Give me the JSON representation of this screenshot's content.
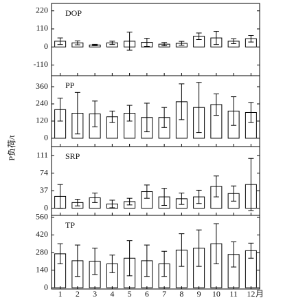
{
  "ylabel": "P负荷/t",
  "chart_data": [
    {
      "type": "bar",
      "title": "DOP",
      "values": [
        35,
        25,
        12,
        25,
        35,
        28,
        17,
        22,
        65,
        55,
        35,
        50
      ],
      "errors": [
        20,
        12,
        4,
        10,
        55,
        25,
        10,
        12,
        20,
        40,
        15,
        20
      ],
      "ylim": [
        -175,
        265
      ],
      "yticks": [
        -110,
        0,
        110,
        220
      ]
    },
    {
      "type": "bar",
      "title": "PP",
      "values": [
        200,
        175,
        170,
        150,
        175,
        145,
        145,
        255,
        215,
        235,
        190,
        180
      ],
      "errors": [
        80,
        145,
        90,
        40,
        55,
        100,
        70,
        125,
        175,
        75,
        100,
        70
      ],
      "ylim": [
        -58,
        437
      ],
      "yticks": [
        0,
        120,
        240,
        360
      ]
    },
    {
      "type": "bar",
      "title": "SRP",
      "values": [
        25,
        12,
        22,
        9,
        14,
        35,
        24,
        20,
        24,
        46,
        31,
        50
      ],
      "errors": [
        25,
        7,
        10,
        8,
        7,
        14,
        18,
        12,
        14,
        22,
        16,
        55
      ],
      "ylim": [
        -15,
        130
      ],
      "yticks": [
        0,
        37,
        74,
        111
      ]
    },
    {
      "type": "bar",
      "title": "TP",
      "values": [
        270,
        215,
        210,
        190,
        235,
        215,
        190,
        300,
        315,
        350,
        265,
        295
      ],
      "errors": [
        80,
        125,
        105,
        70,
        140,
        125,
        100,
        130,
        145,
        160,
        100,
        60
      ],
      "ylim": [
        -10,
        576
      ],
      "yticks": [
        0,
        140,
        280,
        420,
        560
      ],
      "categories": [
        "1",
        "2",
        "3",
        "4",
        "5",
        "6",
        "7",
        "8",
        "9",
        "10",
        "11",
        "12"
      ],
      "xlabel": "月"
    }
  ]
}
